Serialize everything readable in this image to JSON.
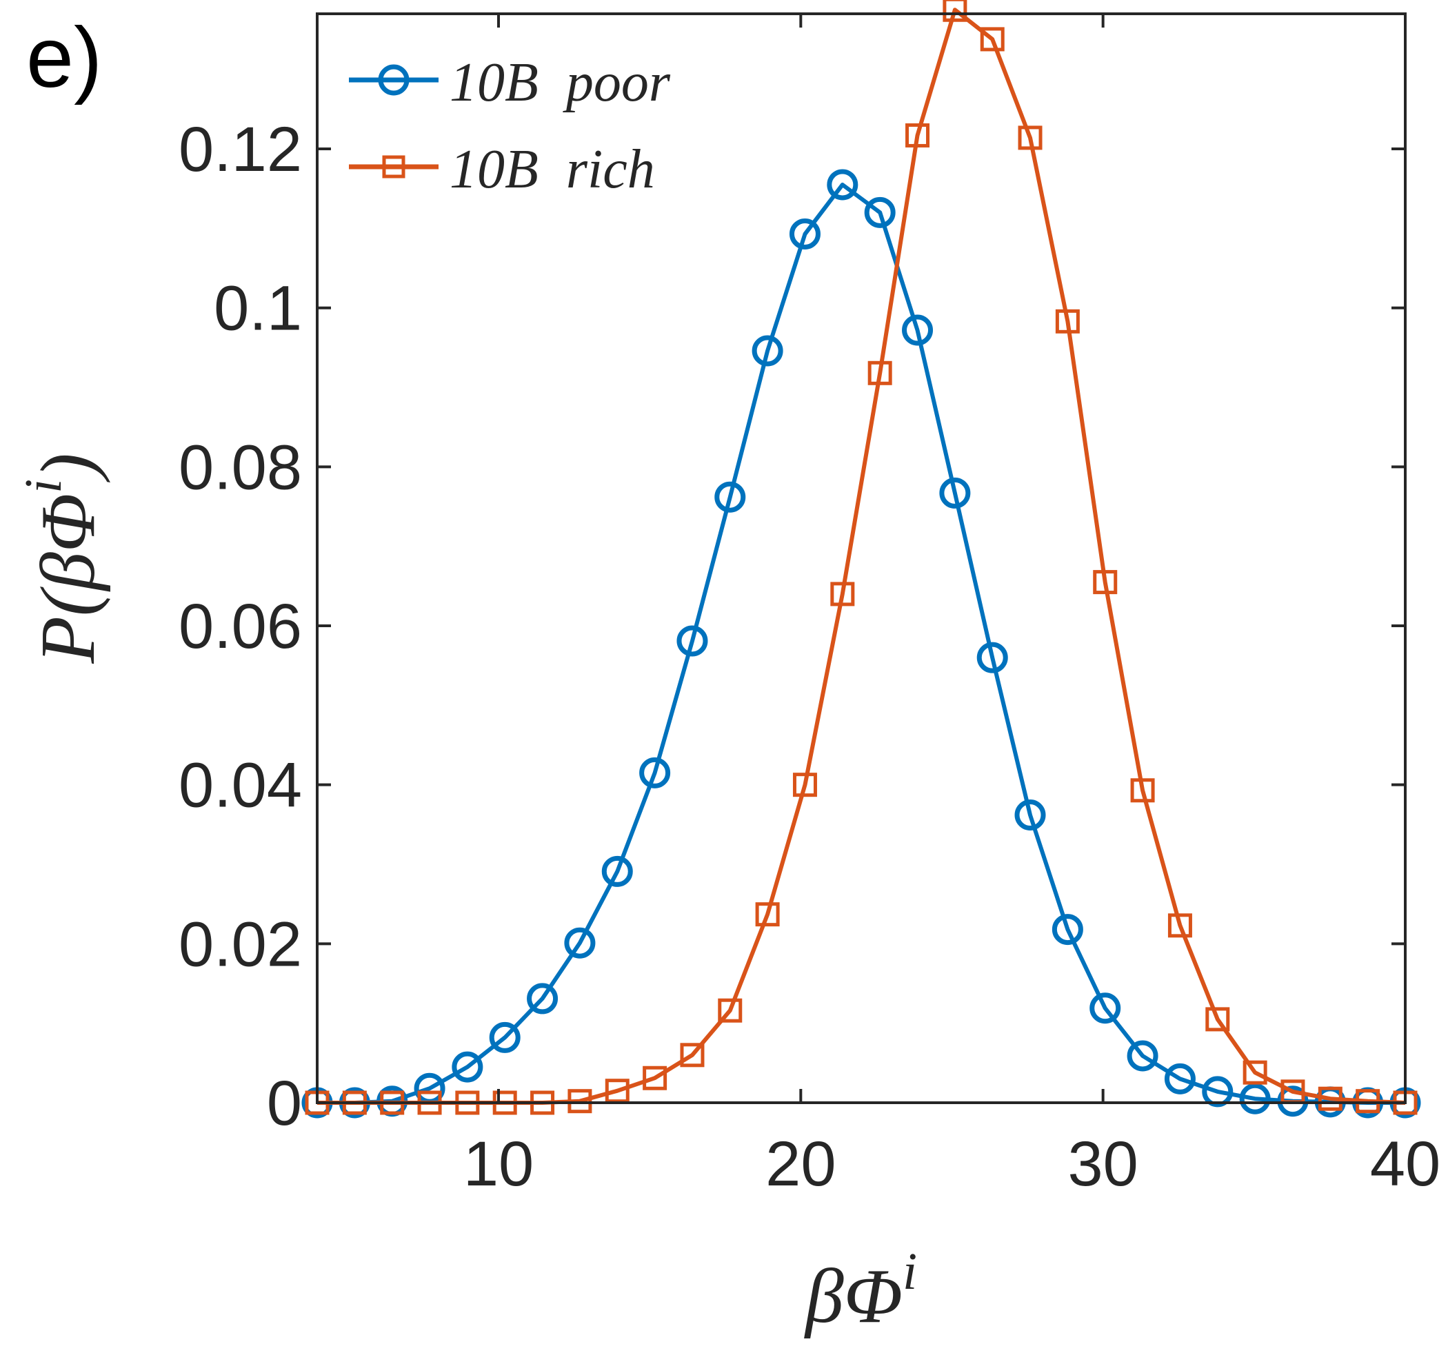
{
  "chart_data": {
    "type": "line",
    "panel_label": "e)",
    "title": "",
    "xlabel": {
      "prefix": "βΦ",
      "superscript": "i"
    },
    "ylabel": {
      "prefix": "P(βΦ",
      "superscript": "i",
      "suffix": ")"
    },
    "xlim": [
      4,
      40
    ],
    "ylim": [
      0,
      0.137
    ],
    "xticks": [
      10,
      20,
      30,
      40
    ],
    "xtick_labels": [
      "10",
      "20",
      "30",
      "40"
    ],
    "yticks": [
      0,
      0.02,
      0.04,
      0.06,
      0.08,
      0.1,
      0.12
    ],
    "ytick_labels": [
      "0",
      "0.02",
      "0.04",
      "0.06",
      "0.08",
      "0.1",
      "0.12"
    ],
    "grid": false,
    "legend_position": "top-left",
    "x": [
      4.0,
      5.24,
      6.48,
      7.72,
      8.97,
      10.21,
      11.45,
      12.69,
      13.93,
      15.17,
      16.41,
      17.66,
      18.9,
      20.14,
      21.38,
      22.62,
      23.86,
      25.1,
      26.34,
      27.59,
      28.83,
      30.07,
      31.31,
      32.55,
      33.79,
      35.03,
      36.28,
      37.52,
      38.76,
      40.0
    ],
    "series": [
      {
        "name": "10B  poor",
        "color": "#0072bd",
        "marker": "circle",
        "values": [
          0,
          0,
          0.0002,
          0.0018,
          0.0045,
          0.0082,
          0.0131,
          0.0201,
          0.0291,
          0.0415,
          0.0581,
          0.0762,
          0.0946,
          0.1093,
          0.1155,
          0.112,
          0.0972,
          0.0767,
          0.056,
          0.0362,
          0.0218,
          0.0119,
          0.0059,
          0.003,
          0.0014,
          0.0005,
          0.0002,
          0.0001,
          0,
          0
        ]
      },
      {
        "name": "10B  rich",
        "color": "#d95319",
        "marker": "square",
        "values": [
          0,
          0,
          0,
          0,
          0,
          0,
          0,
          0.0002,
          0.0015,
          0.0031,
          0.006,
          0.0116,
          0.0237,
          0.04,
          0.064,
          0.0918,
          0.1217,
          0.1375,
          0.1338,
          0.1214,
          0.0983,
          0.0655,
          0.0393,
          0.0223,
          0.0105,
          0.0038,
          0.0014,
          0.0005,
          0.0002,
          0
        ]
      }
    ]
  }
}
